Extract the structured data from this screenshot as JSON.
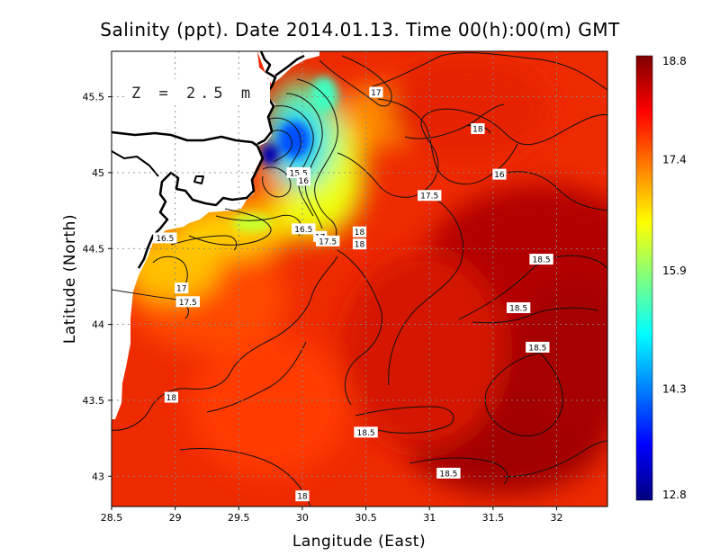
{
  "chart_data": {
    "type": "heatmap",
    "title": "Salinity (ppt). Date 2014.01.13. Time 00(h):00(m) GMT",
    "xlabel": "Langitude (East)",
    "ylabel": "Latitude (North)",
    "annotation": "Z = 2.5 m",
    "xlim": [
      28.5,
      32.4
    ],
    "ylim": [
      42.8,
      45.8
    ],
    "x_ticks": [
      "28.5",
      "29",
      "29.5",
      "30",
      "30.5",
      "31",
      "31.5",
      "32"
    ],
    "x_tick_values": [
      28.5,
      29,
      29.5,
      30,
      30.5,
      31,
      31.5,
      32
    ],
    "y_ticks": [
      "43",
      "43.5",
      "44",
      "44.5",
      "45",
      "45.5"
    ],
    "y_tick_values": [
      43,
      43.5,
      44,
      44.5,
      45,
      45.5
    ],
    "grid": true,
    "colorbar": {
      "min": 12.8,
      "max": 18.8,
      "tick_labels": [
        "18.8",
        "17.4",
        "15.9",
        "14.3",
        "12.8"
      ],
      "tick_values": [
        18.8,
        17.4,
        15.9,
        14.3,
        12.8
      ],
      "colors": [
        "#00007f",
        "#0000ff",
        "#007fff",
        "#00ffff",
        "#7fff7f",
        "#ffff00",
        "#ff7f00",
        "#ff0000",
        "#7f0000"
      ]
    },
    "contour_labels": [
      {
        "text": "17",
        "lon": 30.58,
        "lat": 45.53
      },
      {
        "text": "18",
        "lon": 31.38,
        "lat": 45.29
      },
      {
        "text": "16",
        "lon": 31.55,
        "lat": 44.99
      },
      {
        "text": "15.5",
        "lon": 29.97,
        "lat": 45.0
      },
      {
        "text": "16",
        "lon": 30.01,
        "lat": 44.95
      },
      {
        "text": "17.5",
        "lon": 31.0,
        "lat": 44.85
      },
      {
        "text": "16.5",
        "lon": 30.01,
        "lat": 44.63
      },
      {
        "text": "18",
        "lon": 30.45,
        "lat": 44.61
      },
      {
        "text": "17",
        "lon": 30.14,
        "lat": 44.58
      },
      {
        "text": "17.5",
        "lon": 30.2,
        "lat": 44.55
      },
      {
        "text": "18",
        "lon": 30.45,
        "lat": 44.53
      },
      {
        "text": "16.5",
        "lon": 28.92,
        "lat": 44.57
      },
      {
        "text": "18.5",
        "lon": 31.88,
        "lat": 44.43
      },
      {
        "text": "17",
        "lon": 29.05,
        "lat": 44.24
      },
      {
        "text": "17.5",
        "lon": 29.1,
        "lat": 44.15
      },
      {
        "text": "18.5",
        "lon": 31.7,
        "lat": 44.11
      },
      {
        "text": "18.5",
        "lon": 31.85,
        "lat": 43.85
      },
      {
        "text": "18",
        "lon": 28.97,
        "lat": 43.52
      },
      {
        "text": "18.5",
        "lon": 30.5,
        "lat": 43.29
      },
      {
        "text": "18.5",
        "lon": 31.15,
        "lat": 43.02
      },
      {
        "text": "18",
        "lon": 30.0,
        "lat": 42.87
      }
    ]
  }
}
